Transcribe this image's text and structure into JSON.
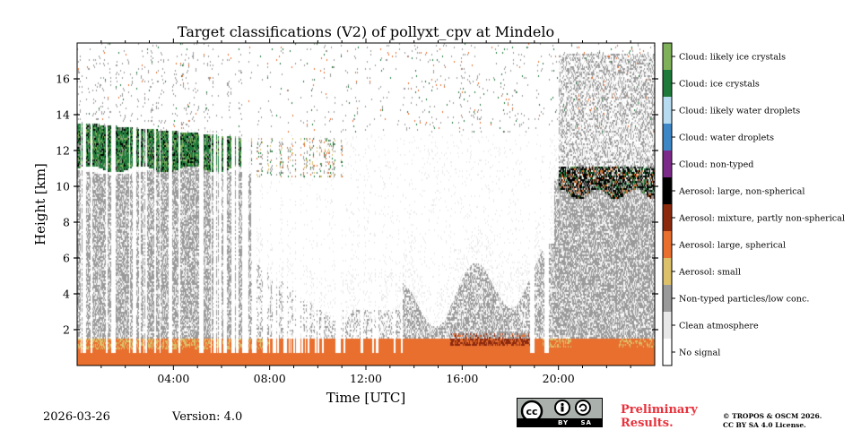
{
  "chart_data": {
    "type": "heatmap",
    "title": "Target classifications (V2) of pollyxt_cpv at Mindelo",
    "xlabel": "Time [UTC]",
    "ylabel": "Height [km]",
    "xlim_hours": [
      0,
      24
    ],
    "ylim_km": [
      0,
      18
    ],
    "x_ticks": [
      {
        "value": 4,
        "label": "04:00"
      },
      {
        "value": 8,
        "label": "08:00"
      },
      {
        "value": 12,
        "label": "12:00"
      },
      {
        "value": 16,
        "label": "16:00"
      },
      {
        "value": 20,
        "label": "20:00"
      }
    ],
    "y_ticks": [
      {
        "value": 2,
        "label": "2"
      },
      {
        "value": 4,
        "label": "4"
      },
      {
        "value": 6,
        "label": "6"
      },
      {
        "value": 8,
        "label": "8"
      },
      {
        "value": 10,
        "label": "10"
      },
      {
        "value": 12,
        "label": "12"
      },
      {
        "value": 14,
        "label": "14"
      },
      {
        "value": 16,
        "label": "16"
      }
    ],
    "legend": [
      {
        "label": "Cloud: likely ice crystals",
        "color": "#7fb05a"
      },
      {
        "label": "Cloud: ice crystals",
        "color": "#1e7a3a"
      },
      {
        "label": "Cloud: likely water droplets",
        "color": "#b7dcf2"
      },
      {
        "label": "Cloud: water droplets",
        "color": "#3d87c6"
      },
      {
        "label": "Cloud: non-typed",
        "color": "#7c2a8a"
      },
      {
        "label": "Aerosol: large, non-spherical",
        "color": "#000000"
      },
      {
        "label": "Aerosol: mixture, partly non-spherical",
        "color": "#8c2a0e"
      },
      {
        "label": "Aerosol: large, spherical",
        "color": "#e86f2e"
      },
      {
        "label": "Aerosol: small",
        "color": "#dcc06a"
      },
      {
        "label": "Non-typed particles/low conc.",
        "color": "#9a9a9a"
      },
      {
        "label": "Clean atmosphere",
        "color": "#e8e8e8"
      },
      {
        "label": "No signal",
        "color": "#ffffff"
      }
    ],
    "layers": [
      {
        "class": "Aerosol: large, spherical",
        "x": [
          0,
          24
        ],
        "height_km": [
          0,
          1.6
        ]
      },
      {
        "class": "Aerosol: small",
        "x": [
          0,
          8
        ],
        "height_km": [
          1.0,
          1.6
        ]
      },
      {
        "class": "Aerosol: mixture, partly non-spherical",
        "x": [
          15.5,
          19.0
        ],
        "height_km": [
          1.2,
          1.8
        ]
      },
      {
        "class": "Non-typed particles/low conc.",
        "x": [
          0,
          8
        ],
        "height_km": [
          1.6,
          11
        ]
      },
      {
        "class": "Non-typed particles/low conc.",
        "x": [
          13.5,
          19.5
        ],
        "height_km": [
          1.6,
          4.5
        ]
      },
      {
        "class": "Non-typed particles/low conc.",
        "x": [
          20,
          24
        ],
        "height_km": [
          1.6,
          17
        ]
      },
      {
        "class": "Cloud: ice crystals",
        "x": [
          0,
          6.8
        ],
        "height_km": [
          10.8,
          13.8
        ]
      },
      {
        "class": "Aerosol: large, non-spherical",
        "x": [
          20,
          24
        ],
        "height_km": [
          9.3,
          11.2
        ]
      }
    ]
  },
  "footer": {
    "date": "2026-03-26",
    "version": "Version: 4.0",
    "cc_label": "BY SA",
    "preliminary_line1": "Preliminary",
    "preliminary_line2": "Results.",
    "copyright_line1": "© TROPOS & OSCM 2026.",
    "copyright_line2": "CC BY SA 4.0 License."
  }
}
